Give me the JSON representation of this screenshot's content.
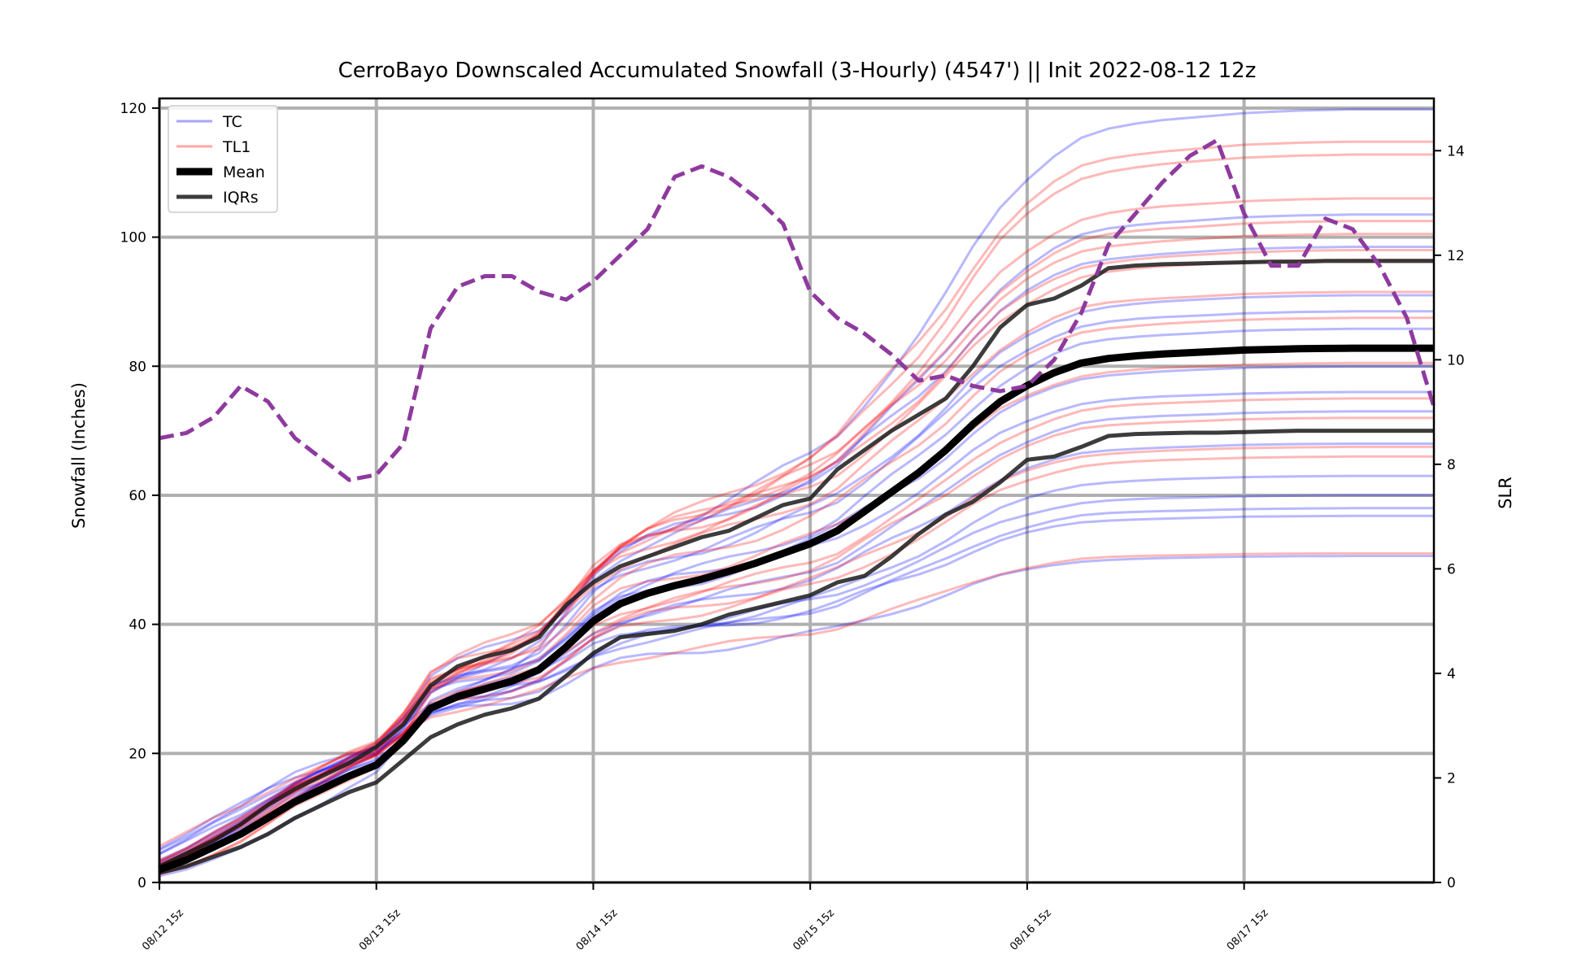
{
  "chart_data": {
    "type": "line",
    "title": "CerroBayo Downscaled Accumulated Snowfall (3-Hourly) (4547') || Init 2022-08-12 12z",
    "ylabel": "Snowfall (Inches)",
    "y2label": "SLR",
    "xlabel": "",
    "ylim": [
      0,
      121.5
    ],
    "y2lim": [
      0,
      15
    ],
    "xlim": [
      0,
      47
    ],
    "xticks": [
      {
        "x": 0,
        "label": "08/12 15z"
      },
      {
        "x": 8,
        "label": "08/13 15z"
      },
      {
        "x": 16,
        "label": "08/14 15z"
      },
      {
        "x": 24,
        "label": "08/15 15z"
      },
      {
        "x": 32,
        "label": "08/16 15z"
      },
      {
        "x": 40,
        "label": "08/17 15z"
      }
    ],
    "yticks": [
      0,
      20,
      40,
      60,
      80,
      100,
      120
    ],
    "y2ticks": [
      0,
      2,
      4,
      6,
      8,
      10,
      12,
      14
    ],
    "grid": true,
    "legend": {
      "placement": "top-left",
      "entries": [
        {
          "label": "TC",
          "color": "#0000ff",
          "style": "thin-faded"
        },
        {
          "label": "TL1",
          "color": "#ff0000",
          "style": "thin-faded"
        },
        {
          "label": "Mean",
          "color": "#000000",
          "style": "thick"
        },
        {
          "label": "IQRs",
          "color": "#1a1a1a",
          "style": "medium"
        }
      ]
    },
    "colors": {
      "TC": "#0000ff",
      "TL1": "#ff0000",
      "mean": "#000000",
      "iqr": "#1a1a1a",
      "slr": "#8e3a9e"
    },
    "mean": [
      2,
      3.5,
      5.5,
      7.5,
      10,
      12.5,
      14.5,
      16.5,
      18.2,
      22,
      27,
      28.8,
      30,
      31.2,
      33,
      36.5,
      40.5,
      43.2,
      44.8,
      46,
      47,
      48.2,
      49.5,
      51,
      52.5,
      54.5,
      57.5,
      60.5,
      63.5,
      67,
      71,
      74.5,
      77,
      79,
      80.5,
      81.2,
      81.6,
      81.9,
      82.1,
      82.3,
      82.5,
      82.6,
      82.7,
      82.75,
      82.8,
      82.8,
      82.8,
      82.8
    ],
    "iqr_upper": [
      2.5,
      4.5,
      6.5,
      9,
      12,
      14.5,
      16.5,
      18.5,
      21,
      24.5,
      30.5,
      33.5,
      35,
      36,
      38,
      43,
      46.5,
      49,
      50.5,
      52,
      53.5,
      54.5,
      56.5,
      58.5,
      59.5,
      64,
      67,
      70,
      72.5,
      75,
      80,
      86,
      89.5,
      90.5,
      92.5,
      95.2,
      95.6,
      95.8,
      95.9,
      96,
      96.1,
      96.2,
      96.2,
      96.3,
      96.3,
      96.3,
      96.3,
      96.3
    ],
    "iqr_lower": [
      1.5,
      2.5,
      4,
      5.5,
      7.5,
      10,
      12,
      14,
      15.5,
      19,
      22.5,
      24.5,
      26,
      27,
      28.5,
      32,
      35.5,
      38,
      38.5,
      39,
      40,
      41.5,
      42.5,
      43.5,
      44.5,
      46.5,
      47.5,
      50.5,
      54,
      57,
      59,
      62,
      65.5,
      66,
      67.5,
      69.2,
      69.5,
      69.6,
      69.7,
      69.7,
      69.8,
      69.9,
      70,
      70,
      70,
      70,
      70,
      70
    ],
    "slr": [
      8.5,
      8.6,
      8.9,
      9.5,
      9.2,
      8.5,
      8.1,
      7.7,
      7.8,
      8.4,
      10.6,
      11.4,
      11.6,
      11.6,
      11.3,
      11.15,
      11.5,
      12,
      12.5,
      13.5,
      13.7,
      13.5,
      13.1,
      12.6,
      11.3,
      10.8,
      10.5,
      10.1,
      9.6,
      9.7,
      9.5,
      9.4,
      9.5,
      10,
      10.9,
      12.2,
      12.8,
      13.4,
      13.9,
      14.2,
      12.8,
      11.8,
      11.8,
      12.7,
      12.5,
      11.8,
      10.8,
      9.1
    ],
    "ensemble": {
      "TC": [
        {
          "final": 119.8,
          "shape": 1.3
        },
        {
          "final": 103.5,
          "shape": 1.1
        },
        {
          "final": 98.5,
          "shape": 1.0
        },
        {
          "final": 91,
          "shape": 1.0
        },
        {
          "final": 88.5,
          "shape": 0.95
        },
        {
          "final": 85.8,
          "shape": 1.0
        },
        {
          "final": 80,
          "shape": 0.9
        },
        {
          "final": 76,
          "shape": 0.85
        },
        {
          "final": 73,
          "shape": 0.9
        },
        {
          "final": 68,
          "shape": 0.8
        },
        {
          "final": 63,
          "shape": 0.8
        },
        {
          "final": 60,
          "shape": 0.7
        },
        {
          "final": 58,
          "shape": 0.7
        },
        {
          "final": 56.8,
          "shape": 0.65
        },
        {
          "final": 50.6,
          "shape": 0.6
        }
      ],
      "TL1": [
        {
          "final": 114.8,
          "shape": 1.2
        },
        {
          "final": 112.8,
          "shape": 1.2
        },
        {
          "final": 106,
          "shape": 1.1
        },
        {
          "final": 102.5,
          "shape": 1.05
        },
        {
          "final": 100.5,
          "shape": 1.0
        },
        {
          "final": 98,
          "shape": 1.0
        },
        {
          "final": 96.5,
          "shape": 1.0
        },
        {
          "final": 91.5,
          "shape": 0.95
        },
        {
          "final": 87.5,
          "shape": 0.95
        },
        {
          "final": 80.5,
          "shape": 0.9
        },
        {
          "final": 75,
          "shape": 0.9
        },
        {
          "final": 72,
          "shape": 0.85
        },
        {
          "final": 67.5,
          "shape": 0.8
        },
        {
          "final": 66,
          "shape": 0.8
        },
        {
          "final": 51,
          "shape": 0.6
        }
      ]
    }
  }
}
